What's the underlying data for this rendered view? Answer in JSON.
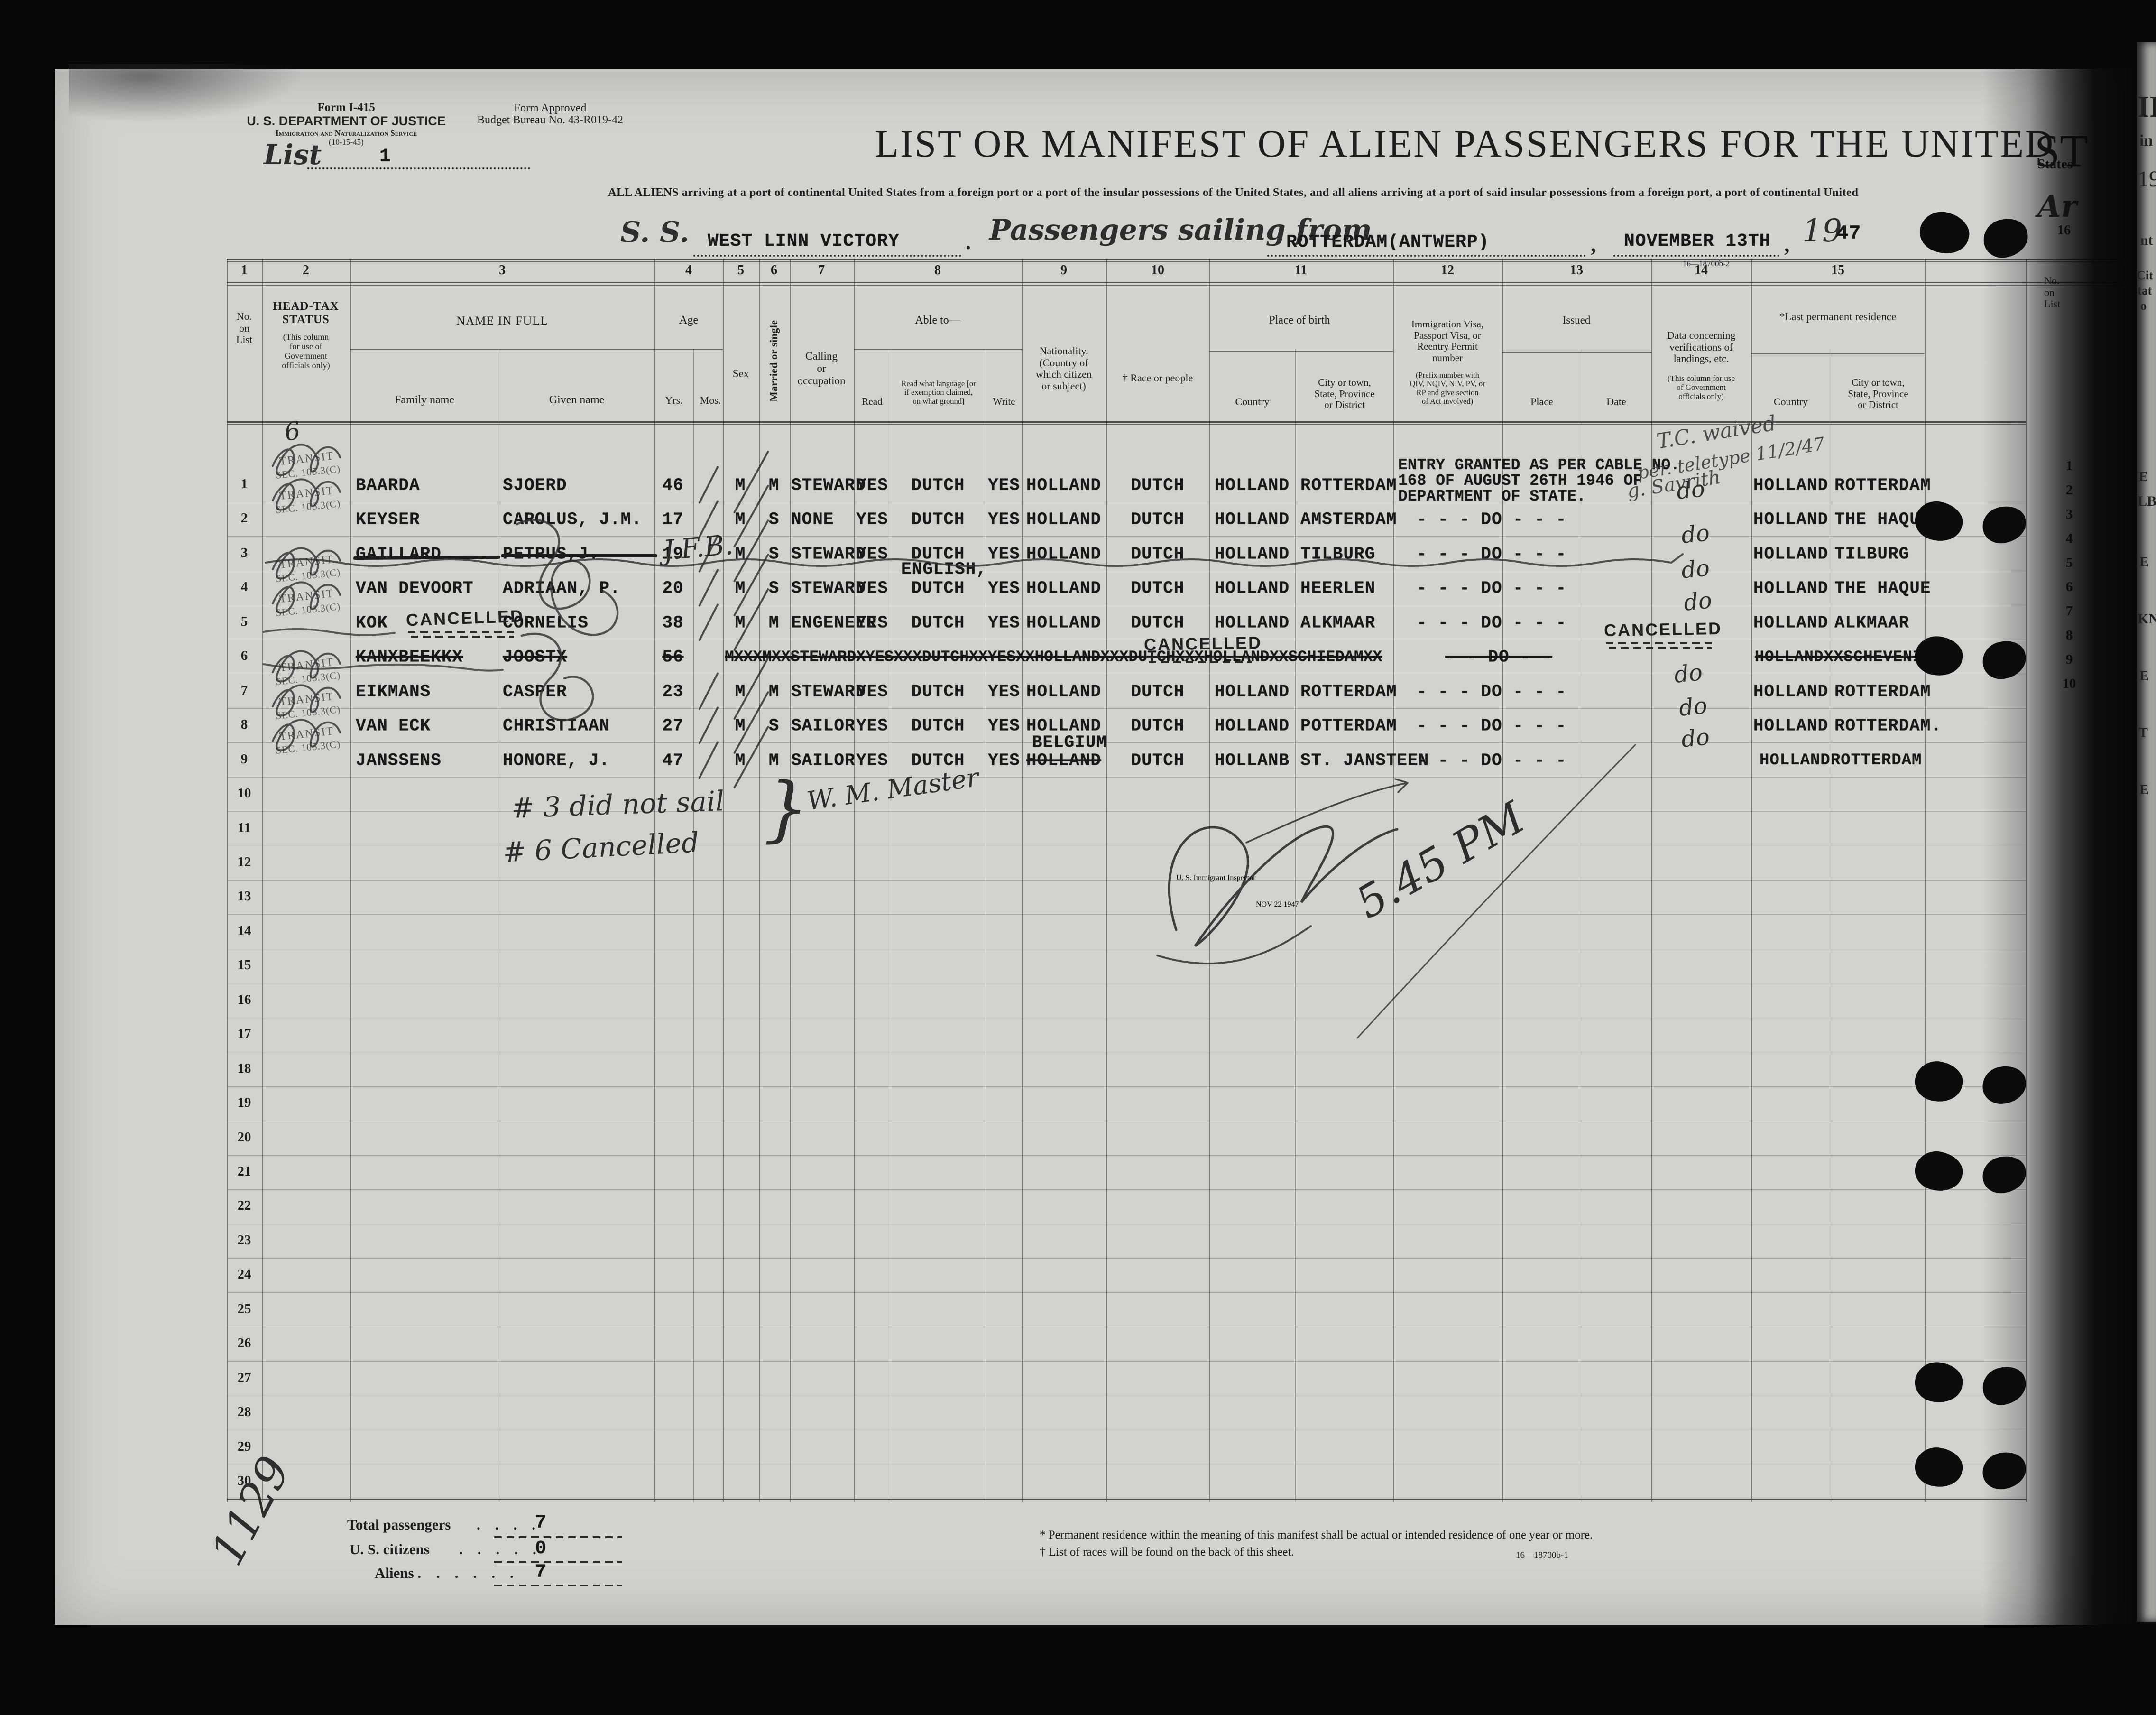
{
  "form": {
    "form_number": "Form I-415",
    "department": "U. S. DEPARTMENT OF JUSTICE",
    "service": "Immigration and Naturalization Service",
    "revision": "(10-15-45)",
    "approved_line1": "Form Approved",
    "approved_line2": "Budget Bureau No. 43-R019-42",
    "list_label": "List",
    "list_number": "1"
  },
  "title": {
    "main": "LIST OR MANIFEST OF ALIEN PASSENGERS FOR THE UNITED",
    "subtitle": "ALL ALIENS arriving at a port of continental United States from a foreign port or a port of the insular possessions of the United States, and all aliens arriving at a port of said insular possessions from a foreign port, a port of continental United"
  },
  "ship_line": {
    "ss_label": "S. S.",
    "ship_name": "WEST LINN VICTORY",
    "period": ".",
    "sailing_label": "Passengers sailing from",
    "port": "ROTTERDAM(ANTWERP)",
    "comma1": ",",
    "date": "NOVEMBER 13TH",
    "comma2": ",",
    "year_prefix": "19",
    "year_suffix": "47",
    "print_code": "16—18700b-2"
  },
  "table": {
    "col_numbers": [
      "1",
      "2",
      "3",
      "4",
      "5",
      "6",
      "7",
      "8",
      "9",
      "10",
      "11",
      "12",
      "13",
      "14",
      "15",
      "16"
    ],
    "headers": {
      "no_on_list": "No.\non\nList",
      "head_tax_title": "HEAD-TAX\nSTATUS",
      "head_tax_note": "(This column\nfor use of\nGovernment\nofficials only)",
      "name_in_full": "NAME IN FULL",
      "family": "Family name",
      "given": "Given name",
      "age": "Age",
      "yrs": "Yrs.",
      "mos": "Mos.",
      "sex": "Sex",
      "married": "Married or single",
      "calling": "Calling\nor\noccupation",
      "able_to": "Able to—",
      "read": "Read",
      "read_lang": "Read what language [or\nif exemption claimed,\non what ground]",
      "write": "Write",
      "nationality": "Nationality.\n(Country of\nwhich citizen\nor subject)",
      "race": "† Race or people",
      "birth": "Place of birth",
      "country": "Country",
      "city": "City or town,\nState, Province\nor District",
      "visa": "Immigration Visa,\nPassport Visa, or\nReentry Permit\nnumber",
      "visa_note": "(Prefix number with\nQIV, NQIV, NIV, PV, or\nRP and give section\nof Act involved)",
      "issued": "Issued",
      "place": "Place",
      "date": "Date",
      "verif": "Data concerning\nverifications of\nlandings, etc.",
      "verif_note": "(This column for use\nof Government\nofficials only)",
      "last_res": "*Last permanent residence"
    },
    "rows": [
      {
        "no": "1",
        "family": "BAARDA",
        "given": "SJOERD",
        "yrs": "46",
        "sex": "M",
        "married": "M",
        "calling": "STEWARD",
        "read": "YES",
        "language": "DUTCH",
        "write": "YES",
        "nationality": "HOLLAND",
        "race": "DUTCH",
        "birth_country": "HOLLAND",
        "birth_city": "ROTTERDAM",
        "visa": "ENTRY GRANTED AS PER CABLE NO.\n168 OF AUGUST 26TH 1946 OF\nDEPARTMENT OF STATE.",
        "res_country": "HOLLAND",
        "res_city": "ROTTERDAM"
      },
      {
        "no": "2",
        "family": "KEYSER",
        "given": "CAROLUS, J.M.",
        "yrs": "17",
        "sex": "M",
        "married": "S",
        "calling": "NONE",
        "read": "YES",
        "language": "DUTCH",
        "write": "YES",
        "nationality": "HOLLAND",
        "race": "DUTCH",
        "birth_country": "HOLLAND",
        "birth_city": "AMSTERDAM",
        "visa": "- - - DO - - -",
        "res_country": "HOLLAND",
        "res_city": "THE HAQUE"
      },
      {
        "no": "3",
        "family": "GAILLARD",
        "given": "PETRUS,J.",
        "yrs": "19",
        "sex": "M",
        "married": "S",
        "calling": "STEWARD",
        "read": "YES",
        "language": "DUTCH",
        "write": "YES",
        "nationality": "HOLLAND",
        "race": "DUTCH",
        "birth_country": "HOLLAND",
        "birth_city": "TILBURG",
        "visa": "- - - DO - - -",
        "res_country": "HOLLAND",
        "res_city": "TILBURG"
      },
      {
        "no": "4",
        "family": "VAN DEVOORT",
        "given": "ADRIAAN, P.",
        "yrs": "20",
        "sex": "M",
        "married": "S",
        "calling": "STEWARD",
        "read": "YES",
        "language_extra": "ENGLISH,",
        "language": "DUTCH",
        "write": "YES",
        "nationality": "HOLLAND",
        "race": "DUTCH",
        "birth_country": "HOLLAND",
        "birth_city": "HEERLEN",
        "visa": "- - - DO - - -",
        "res_country": "HOLLAND",
        "res_city": "THE HAQUE"
      },
      {
        "no": "5",
        "family": "KOK",
        "given": "CORNELIS",
        "yrs": "38",
        "sex": "M",
        "married": "M",
        "calling": "ENGENEER",
        "read": "YES",
        "language": "DUTCH",
        "write": "YES",
        "nationality": "HOLLAND",
        "race": "DUTCH",
        "birth_country": "HOLLAND",
        "birth_city": "ALKMAAR",
        "visa": "- - - DO - - -",
        "res_country": "HOLLAND",
        "res_city": "ALKMAAR"
      },
      {
        "no": "6",
        "family": "KANXBEEKKX",
        "given": "JOOSTX",
        "yrs": "56",
        "merged": "MXXXMXXSTEWARDXYESXXXDUTCHXXYESXXHOLLANDXXXDUTCHXXXHOLLANDXXSCHIEDAMXX",
        "visa": "- - DO - -",
        "res_combined": "HOLLANDXXSCHEVENINGEN"
      },
      {
        "no": "7",
        "family": "EIKMANS",
        "given": "CASPER",
        "yrs": "23",
        "sex": "M",
        "married": "M",
        "calling": "STEWARD",
        "read": "YES",
        "language": "DUTCH",
        "write": "YES",
        "nationality": "HOLLAND",
        "race": "DUTCH",
        "birth_country": "HOLLAND",
        "birth_city": "ROTTERDAM",
        "visa": "- - - DO - - -",
        "res_country": "HOLLAND",
        "res_city": "ROTTERDAM"
      },
      {
        "no": "8",
        "family": "VAN ECK",
        "given": "CHRISTIAAN",
        "yrs": "27",
        "sex": "M",
        "married": "S",
        "calling": "SAILOR",
        "read": "YES",
        "language": "DUTCH",
        "write": "YES",
        "nationality": "HOLLAND",
        "race": "DUTCH",
        "birth_country": "HOLLAND",
        "birth_city": "POTTERDAM",
        "visa": "- - - DO - - -",
        "res_country": "HOLLAND",
        "res_city": "ROTTERDAM."
      },
      {
        "no": "9",
        "family": "JANSSENS",
        "given": "HONORE, J.",
        "yrs": "47",
        "sex": "M",
        "married": "M",
        "calling": "SAILOR",
        "read": "YES",
        "language": "DUTCH",
        "write": "YES",
        "nationality_extra": "BELGIUM",
        "nationality": "HOLLAND",
        "race": "DUTCH",
        "birth_country": "HOLLANB",
        "birth_city": "ST. JANSTEEN",
        "visa": "- - - DO - - -",
        "res_combined": "HOLLANDROTTERDAM"
      }
    ],
    "row_labels": [
      "1",
      "2",
      "3",
      "4",
      "5",
      "6",
      "7",
      "8",
      "9",
      "10",
      "11",
      "12",
      "13",
      "14",
      "15",
      "16",
      "17",
      "18",
      "19",
      "20",
      "21",
      "22",
      "23",
      "24",
      "25",
      "26",
      "27",
      "28",
      "29",
      "30"
    ]
  },
  "stamps": {
    "transit1": "TRANSIT",
    "transit2": "SEC. 105.3(C)",
    "cancelled": "CANCELLED"
  },
  "annotations": {
    "hw_six": "6",
    "jfb": "J.F.B.",
    "note_3": "# 3 did not sail",
    "note_6": "# 6 Cancelled",
    "brace": "}",
    "master_sig": "W. M. Master",
    "tc1": "T.C. waived",
    "tc2": "per. teletype 11/2/47",
    "tc3": "g. Savrith",
    "do_mark": "do",
    "inspector_stamp": "U. S. Immigrant Inspector",
    "date_stamp": "NOV 22 1947",
    "time_note": "5.45 PM",
    "page_number": "1129"
  },
  "totals": {
    "rows": [
      {
        "label": "Total passengers",
        "dots": ".    .    .    .",
        "value": "7"
      },
      {
        "label": "U. S. citizens",
        "dots": ".    .    .    .    .",
        "value": "0"
      },
      {
        "label": "Aliens .",
        "dots": ".    .    .    .    .",
        "value": "7"
      }
    ]
  },
  "footnotes": {
    "star": "* Permanent residence within the meaning of this manifest shall be actual or intended residence of one year or more.",
    "dagger": "† List of races will be found on the back of this sheet.",
    "print_code": "16—18700b-1"
  },
  "fragments": {
    "st": "ST",
    "states": "States",
    "ar": "Ar",
    "col16": "16",
    "no_on_list": "No.\non\nList",
    "right_rows": [
      "1",
      "2",
      "3",
      "4",
      "5",
      "6",
      "7",
      "8",
      "9",
      "10"
    ],
    "sliver": [
      "II",
      "in",
      "19",
      "nt",
      "Cit",
      "tat",
      "o",
      "E",
      "LB",
      "E",
      "KN",
      "E",
      "T",
      "E"
    ]
  }
}
